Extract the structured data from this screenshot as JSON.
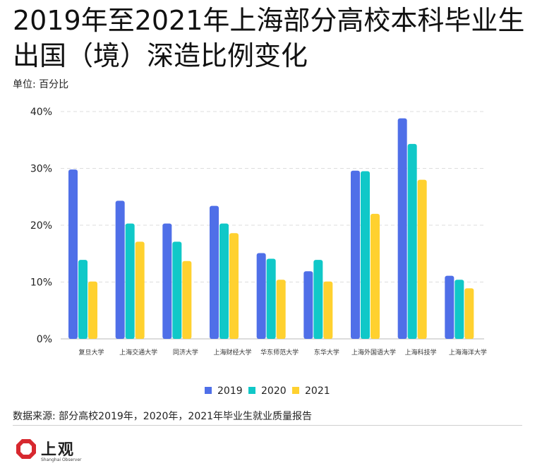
{
  "header": {
    "title": "2019年至2021年上海部分高校本科毕业生出国（境）深造比例变化",
    "unit": "单位: 百分比"
  },
  "footer": {
    "source": "数据来源: 部分高校2019年，2020年，2021年毕业生就业质量报告",
    "logo_name": "上观",
    "logo_en": "Shanghai Observer"
  },
  "chart_data": {
    "type": "bar",
    "title": "2019年至2021年上海部分高校本科毕业生出国（境）深造比例变化",
    "ylabel": "",
    "xlabel": "",
    "ylim": [
      0,
      40
    ],
    "yticks": [
      "0%",
      "10%",
      "20%",
      "30%",
      "40%"
    ],
    "grid": true,
    "legend_position": "bottom",
    "categories": [
      "复旦大学",
      "上海交通大学",
      "同济大学",
      "上海财经大学",
      "华东师范大学",
      "东华大学",
      "上海外国语大学",
      "上海科技学",
      "上海海洋大学"
    ],
    "series": [
      {
        "name": "2019",
        "color": "#4f6fe8",
        "values": [
          29.8,
          24.3,
          20.3,
          23.4,
          15.1,
          11.9,
          29.6,
          38.8,
          11.1
        ]
      },
      {
        "name": "2020",
        "color": "#10c8c8",
        "values": [
          13.9,
          20.3,
          17.1,
          20.3,
          14.1,
          13.9,
          29.5,
          34.3,
          10.4
        ]
      },
      {
        "name": "2021",
        "color": "#ffd12f",
        "values": [
          10.1,
          17.1,
          13.7,
          18.6,
          10.4,
          10.1,
          22.0,
          28.0,
          8.9
        ]
      }
    ]
  }
}
